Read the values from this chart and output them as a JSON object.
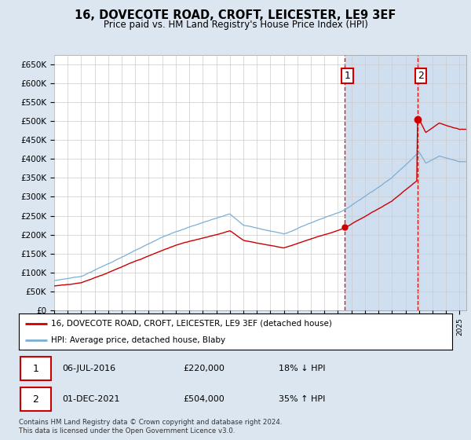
{
  "title": "16, DOVECOTE ROAD, CROFT, LEICESTER, LE9 3EF",
  "subtitle": "Price paid vs. HM Land Registry's House Price Index (HPI)",
  "ylabel_ticks": [
    "£0",
    "£50K",
    "£100K",
    "£150K",
    "£200K",
    "£250K",
    "£300K",
    "£350K",
    "£400K",
    "£450K",
    "£500K",
    "£550K",
    "£600K",
    "£650K"
  ],
  "ytick_values": [
    0,
    50000,
    100000,
    150000,
    200000,
    250000,
    300000,
    350000,
    400000,
    450000,
    500000,
    550000,
    600000,
    650000
  ],
  "ylim": [
    0,
    675000
  ],
  "xlim_left": 1995,
  "xlim_right": 2025.5,
  "t1_year": 2016.5,
  "t1_price": 220000,
  "t2_year": 2021.917,
  "t2_price": 504000,
  "transaction1_date": "06-JUL-2016",
  "transaction1_price_str": "£220,000",
  "transaction1_note": "18% ↓ HPI",
  "transaction2_date": "01-DEC-2021",
  "transaction2_price_str": "£504,000",
  "transaction2_note": "35% ↑ HPI",
  "legend_house": "16, DOVECOTE ROAD, CROFT, LEICESTER, LE9 3EF (detached house)",
  "legend_hpi": "HPI: Average price, detached house, Blaby",
  "footnote": "Contains HM Land Registry data © Crown copyright and database right 2024.\nThis data is licensed under the Open Government Licence v3.0.",
  "house_color": "#cc0000",
  "hpi_color": "#7bafd4",
  "background_color": "#dce6f1",
  "plot_bg_color": "#ffffff",
  "grid_color": "#cccccc",
  "annotation_box_color": "#cc0000",
  "shading_color": "#d0dff0"
}
